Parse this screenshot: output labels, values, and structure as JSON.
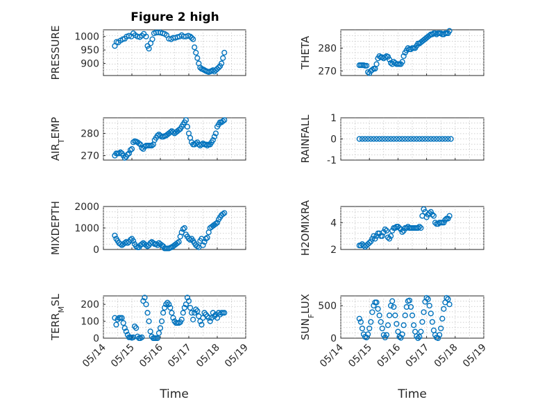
{
  "figure": {
    "title": "Figure 2 high",
    "x_label": "Time",
    "marker_color": "#0072BD"
  },
  "chart_data": [
    {
      "type": "scatter",
      "ylabel": "PRESSURE",
      "ylabel_sub": "",
      "ylabel_tail": "",
      "title": "Figure 2 high",
      "ylim": [
        855,
        1025
      ],
      "yticks": [
        900,
        950,
        1000
      ],
      "xlim_days": [
        0,
        5
      ],
      "x": [
        0.4,
        0.46,
        0.52,
        0.6,
        0.68,
        0.75,
        0.82,
        0.9,
        0.98,
        1.05,
        1.12,
        1.2,
        1.28,
        1.35,
        1.42,
        1.5,
        1.55,
        1.6,
        1.66,
        1.72,
        1.78,
        1.85,
        1.92,
        2.0,
        2.08,
        2.15,
        2.22,
        2.3,
        2.38,
        2.45,
        2.52,
        2.6,
        2.68,
        2.75,
        2.82,
        2.9,
        2.98,
        3.05,
        3.1,
        3.15,
        3.2,
        3.25,
        3.3,
        3.35,
        3.4,
        3.45,
        3.5,
        3.55,
        3.6,
        3.65,
        3.7,
        3.75,
        3.8,
        3.85,
        3.9,
        3.95,
        4.0,
        4.05,
        4.1,
        4.15,
        4.2,
        4.25
      ],
      "y": [
        965,
        980,
        978,
        985,
        990,
        992,
        1000,
        1003,
        1000,
        1012,
        1005,
        1000,
        998,
        1003,
        1010,
        1000,
        965,
        955,
        975,
        990,
        1012,
        1015,
        1015,
        1015,
        1012,
        1010,
        1005,
        992,
        990,
        995,
        995,
        998,
        1000,
        1005,
        1000,
        1000,
        1003,
        1000,
        995,
        990,
        960,
        940,
        920,
        900,
        885,
        880,
        878,
        875,
        872,
        870,
        868,
        870,
        872,
        875,
        870,
        875,
        880,
        885,
        890,
        900,
        920,
        940
      ]
    },
    {
      "type": "scatter",
      "ylabel": "THETA",
      "ylabel_sub": "",
      "ylabel_tail": "",
      "ylim": [
        268,
        288
      ],
      "yticks": [
        270,
        280
      ],
      "xlim_days": [
        0,
        5
      ],
      "x": [
        0.65,
        0.7,
        0.75,
        0.8,
        0.85,
        0.9,
        0.95,
        1.0,
        1.05,
        1.1,
        1.15,
        1.2,
        1.25,
        1.3,
        1.35,
        1.4,
        1.45,
        1.5,
        1.55,
        1.6,
        1.65,
        1.7,
        1.75,
        1.8,
        1.85,
        1.9,
        1.95,
        2.0,
        2.05,
        2.1,
        2.15,
        2.2,
        2.25,
        2.3,
        2.35,
        2.4,
        2.45,
        2.5,
        2.55,
        2.6,
        2.65,
        2.7,
        2.75,
        2.8,
        2.85,
        2.9,
        2.95,
        3.0,
        3.05,
        3.1,
        3.15,
        3.2,
        3.25,
        3.3,
        3.35,
        3.4,
        3.45,
        3.5,
        3.55,
        3.6,
        3.65,
        3.7,
        3.75,
        3.8
      ],
      "y": [
        272.5,
        272.5,
        272.5,
        272.5,
        272.3,
        272.3,
        269.5,
        269,
        270,
        270.5,
        271,
        271,
        273,
        275.5,
        276.5,
        276,
        276,
        275.5,
        276,
        276.5,
        276.2,
        275,
        273.5,
        273,
        274,
        273.5,
        273,
        273,
        273,
        273,
        274,
        276.5,
        278,
        279,
        280,
        279.5,
        279.5,
        280,
        280,
        280,
        281,
        282,
        282,
        282.5,
        283,
        283.5,
        284,
        284.5,
        285,
        285.5,
        286,
        286,
        286.5,
        286.5,
        286,
        286.5,
        286.5,
        286.5,
        286,
        286,
        286.5,
        286.5,
        286.5,
        287.5
      ]
    },
    {
      "type": "scatter",
      "ylabel": "AIR",
      "ylabel_sub": "T",
      "ylabel_tail": "EMP",
      "ylim": [
        268,
        287
      ],
      "yticks": [
        270,
        280
      ],
      "xlim_days": [
        0,
        5
      ],
      "x": [
        0.4,
        0.45,
        0.5,
        0.55,
        0.6,
        0.65,
        0.7,
        0.75,
        0.8,
        0.85,
        0.9,
        0.95,
        1.0,
        1.05,
        1.1,
        1.15,
        1.2,
        1.25,
        1.3,
        1.35,
        1.4,
        1.45,
        1.5,
        1.55,
        1.6,
        1.65,
        1.7,
        1.75,
        1.8,
        1.85,
        1.9,
        1.95,
        2.0,
        2.05,
        2.1,
        2.15,
        2.2,
        2.25,
        2.3,
        2.35,
        2.4,
        2.45,
        2.5,
        2.55,
        2.6,
        2.65,
        2.7,
        2.75,
        2.8,
        2.85,
        2.9,
        2.95,
        3.0,
        3.05,
        3.1,
        3.15,
        3.2,
        3.25,
        3.3,
        3.35,
        3.4,
        3.45,
        3.5,
        3.55,
        3.6,
        3.65,
        3.7,
        3.75,
        3.8,
        3.85,
        3.9,
        3.95,
        4.0,
        4.05,
        4.1,
        4.15,
        4.2,
        4.25
      ],
      "y": [
        270,
        271,
        271,
        271,
        271.5,
        271,
        270,
        269,
        269.5,
        270.5,
        271,
        272.5,
        273,
        276,
        276.5,
        276.3,
        276,
        275.5,
        275,
        273.5,
        273,
        274,
        274.5,
        274.5,
        274.5,
        274.5,
        274.5,
        275,
        277,
        278,
        279,
        279.5,
        279,
        278.5,
        278.5,
        278.8,
        279,
        279.5,
        280,
        280.5,
        281,
        280.5,
        280,
        280.5,
        281,
        281.5,
        282,
        283,
        284,
        285,
        286,
        283,
        280,
        278,
        276,
        275,
        275,
        275.5,
        276,
        275,
        274.5,
        275,
        275.5,
        275,
        275,
        274.5,
        275,
        275,
        276,
        277,
        278.5,
        280,
        283,
        284,
        285,
        285,
        285.5,
        286
      ]
    },
    {
      "type": "scatter",
      "ylabel": "RAINFALL",
      "ylabel_sub": "",
      "ylabel_tail": "",
      "ylim": [
        -1,
        1
      ],
      "yticks": [
        -1,
        0,
        1
      ],
      "xlim_days": [
        0,
        5
      ],
      "x": [
        0.65,
        0.75,
        0.85,
        0.95,
        1.05,
        1.15,
        1.25,
        1.35,
        1.45,
        1.55,
        1.65,
        1.75,
        1.85,
        1.95,
        2.05,
        2.15,
        2.25,
        2.35,
        2.45,
        2.55,
        2.65,
        2.75,
        2.85,
        2.95,
        3.05,
        3.15,
        3.25,
        3.35,
        3.45,
        3.55,
        3.65,
        3.75,
        3.85
      ],
      "y": [
        0,
        0,
        0,
        0,
        0,
        0,
        0,
        0,
        0,
        0,
        0,
        0,
        0,
        0,
        0,
        0,
        0,
        0,
        0,
        0,
        0,
        0,
        0,
        0,
        0,
        0,
        0,
        0,
        0,
        0,
        0,
        0,
        0
      ]
    },
    {
      "type": "scatter",
      "ylabel": "MIXDEPTH",
      "ylabel_sub": "",
      "ylabel_tail": "",
      "ylim": [
        0,
        2000
      ],
      "yticks": [
        0,
        1000,
        2000
      ],
      "xlim_days": [
        0,
        5
      ],
      "x": [
        0.4,
        0.45,
        0.5,
        0.55,
        0.6,
        0.65,
        0.7,
        0.75,
        0.8,
        0.85,
        0.9,
        0.95,
        1.0,
        1.05,
        1.1,
        1.15,
        1.2,
        1.25,
        1.3,
        1.35,
        1.4,
        1.45,
        1.5,
        1.55,
        1.6,
        1.65,
        1.7,
        1.75,
        1.8,
        1.85,
        1.9,
        1.95,
        2.0,
        2.05,
        2.1,
        2.15,
        2.2,
        2.25,
        2.3,
        2.35,
        2.4,
        2.45,
        2.5,
        2.55,
        2.6,
        2.65,
        2.7,
        2.75,
        2.8,
        2.85,
        2.9,
        2.95,
        3.0,
        3.05,
        3.1,
        3.15,
        3.2,
        3.25,
        3.3,
        3.35,
        3.4,
        3.45,
        3.5,
        3.55,
        3.6,
        3.65,
        3.7,
        3.75,
        3.8,
        3.85,
        3.9,
        3.95,
        4.0,
        4.05,
        4.1,
        4.15,
        4.2,
        4.25
      ],
      "y": [
        650,
        500,
        400,
        300,
        250,
        200,
        250,
        300,
        350,
        300,
        350,
        450,
        500,
        400,
        250,
        150,
        100,
        100,
        200,
        250,
        300,
        250,
        200,
        150,
        200,
        300,
        350,
        300,
        250,
        250,
        200,
        300,
        250,
        200,
        150,
        50,
        50,
        50,
        50,
        80,
        100,
        150,
        200,
        250,
        300,
        350,
        600,
        800,
        950,
        1000,
        700,
        600,
        500,
        450,
        500,
        400,
        300,
        200,
        150,
        100,
        400,
        500,
        200,
        350,
        500,
        550,
        800,
        1000,
        1050,
        1100,
        1150,
        1200,
        1250,
        1400,
        1500,
        1600,
        1650,
        1700
      ]
    },
    {
      "type": "scatter",
      "ylabel": "H2OMIXRA",
      "ylabel_sub": "",
      "ylabel_tail": "",
      "ylim": [
        2,
        5.2
      ],
      "yticks": [
        2,
        4
      ],
      "xlim_days": [
        0,
        5
      ],
      "x": [
        0.65,
        0.7,
        0.75,
        0.8,
        0.85,
        0.9,
        0.95,
        1.0,
        1.05,
        1.1,
        1.15,
        1.2,
        1.25,
        1.3,
        1.35,
        1.4,
        1.45,
        1.5,
        1.55,
        1.6,
        1.65,
        1.7,
        1.75,
        1.8,
        1.85,
        1.9,
        1.95,
        2.0,
        2.05,
        2.1,
        2.15,
        2.2,
        2.25,
        2.3,
        2.35,
        2.4,
        2.45,
        2.5,
        2.55,
        2.6,
        2.65,
        2.7,
        2.75,
        2.8,
        2.85,
        2.9,
        2.95,
        3.0,
        3.05,
        3.1,
        3.15,
        3.2,
        3.25,
        3.3,
        3.35,
        3.4,
        3.45,
        3.5,
        3.55,
        3.6,
        3.65,
        3.7,
        3.75,
        3.8
      ],
      "y": [
        2.3,
        2.3,
        2.4,
        2.3,
        2.2,
        2.3,
        2.4,
        2.5,
        2.6,
        2.8,
        3.0,
        2.8,
        3.0,
        3.2,
        3.2,
        3.0,
        3.0,
        3.3,
        3.5,
        3.4,
        2.9,
        2.8,
        3.0,
        3.4,
        3.6,
        3.6,
        3.7,
        3.7,
        3.6,
        3.5,
        3.3,
        3.4,
        3.6,
        3.6,
        3.7,
        3.6,
        3.6,
        3.6,
        3.6,
        3.6,
        3.6,
        3.6,
        3.7,
        3.6,
        4.5,
        5.0,
        4.8,
        4.4,
        4.6,
        4.7,
        4.8,
        4.6,
        4.5,
        4.0,
        3.9,
        3.9,
        4.0,
        4.0,
        4.0,
        4.0,
        4.2,
        4.3,
        4.3,
        4.5
      ]
    },
    {
      "type": "scatter",
      "ylabel": "TERR",
      "ylabel_sub": "M",
      "ylabel_tail": "SL",
      "ylim": [
        0,
        250
      ],
      "yticks": [
        0,
        100,
        200
      ],
      "xlim_days": [
        0,
        5
      ],
      "x": [
        0.4,
        0.45,
        0.5,
        0.55,
        0.6,
        0.65,
        0.7,
        0.75,
        0.8,
        0.85,
        0.9,
        0.95,
        1.0,
        1.05,
        1.1,
        1.15,
        1.2,
        1.25,
        1.3,
        1.35,
        1.4,
        1.45,
        1.5,
        1.55,
        1.6,
        1.65,
        1.7,
        1.75,
        1.8,
        1.85,
        1.9,
        1.95,
        2.0,
        2.05,
        2.1,
        2.15,
        2.2,
        2.25,
        2.3,
        2.35,
        2.4,
        2.45,
        2.5,
        2.55,
        2.6,
        2.65,
        2.7,
        2.75,
        2.8,
        2.85,
        2.9,
        2.95,
        3.0,
        3.05,
        3.1,
        3.15,
        3.2,
        3.25,
        3.3,
        3.35,
        3.4,
        3.45,
        3.5,
        3.55,
        3.6,
        3.65,
        3.7,
        3.75,
        3.8,
        3.85,
        3.9,
        3.95,
        4.0,
        4.05,
        4.1,
        4.15,
        4.2,
        4.25
      ],
      "y": [
        120,
        80,
        110,
        120,
        120,
        120,
        90,
        60,
        40,
        20,
        5,
        5,
        2,
        5,
        70,
        60,
        10,
        0,
        0,
        5,
        220,
        240,
        200,
        150,
        100,
        40,
        10,
        0,
        0,
        0,
        0,
        30,
        60,
        100,
        150,
        180,
        200,
        210,
        200,
        180,
        150,
        120,
        100,
        90,
        90,
        90,
        95,
        110,
        150,
        180,
        200,
        240,
        220,
        180,
        150,
        110,
        150,
        170,
        160,
        130,
        100,
        80,
        120,
        150,
        140,
        130,
        120,
        100,
        120,
        150,
        130,
        140,
        120,
        150,
        140,
        150,
        150,
        150
      ]
    },
    {
      "type": "scatter",
      "ylabel": "SUN",
      "ylabel_sub": "F",
      "ylabel_tail": "LUX",
      "ylim": [
        0,
        650
      ],
      "yticks": [
        0,
        500
      ],
      "xlim_days": [
        0,
        5
      ],
      "x": [
        0.65,
        0.7,
        0.75,
        0.8,
        0.85,
        0.9,
        0.95,
        1.0,
        1.05,
        1.1,
        1.15,
        1.2,
        1.25,
        1.3,
        1.35,
        1.4,
        1.45,
        1.5,
        1.55,
        1.6,
        1.65,
        1.7,
        1.75,
        1.8,
        1.85,
        1.9,
        1.95,
        2.0,
        2.05,
        2.1,
        2.15,
        2.2,
        2.25,
        2.3,
        2.35,
        2.4,
        2.45,
        2.5,
        2.55,
        2.6,
        2.65,
        2.7,
        2.75,
        2.8,
        2.85,
        2.9,
        2.95,
        3.0,
        3.05,
        3.1,
        3.15,
        3.2,
        3.25,
        3.3,
        3.35,
        3.4,
        3.45,
        3.5,
        3.55,
        3.6,
        3.65,
        3.7,
        3.75,
        3.8
      ],
      "y": [
        300,
        250,
        150,
        60,
        20,
        10,
        60,
        150,
        250,
        400,
        500,
        550,
        550,
        450,
        350,
        250,
        150,
        50,
        10,
        50,
        200,
        350,
        500,
        570,
        480,
        350,
        220,
        100,
        20,
        5,
        60,
        200,
        350,
        480,
        570,
        580,
        480,
        350,
        200,
        100,
        30,
        0,
        20,
        100,
        250,
        400,
        560,
        620,
        600,
        500,
        380,
        250,
        120,
        50,
        10,
        0,
        50,
        150,
        300,
        450,
        550,
        620,
        600,
        520
      ]
    }
  ],
  "shared_x": {
    "ticks": [
      "05/14",
      "05/15",
      "05/16",
      "05/17",
      "05/18",
      "05/19"
    ]
  }
}
